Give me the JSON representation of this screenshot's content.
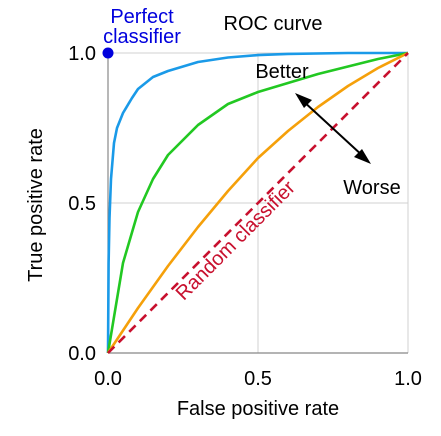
{
  "chart_data": {
    "type": "line",
    "title": "ROC curve",
    "xlabel": "False positive rate",
    "ylabel": "True positive rate",
    "xlim": [
      0,
      1
    ],
    "ylim": [
      0,
      1
    ],
    "grid": true,
    "xticks": [
      {
        "value": 0,
        "label": "0.0"
      },
      {
        "value": 0.5,
        "label": "0.5"
      },
      {
        "value": 1,
        "label": "1.0"
      }
    ],
    "yticks": [
      {
        "value": 0,
        "label": "0.0"
      },
      {
        "value": 0.5,
        "label": "0.5"
      },
      {
        "value": 1,
        "label": "1.0"
      }
    ],
    "series": [
      {
        "color": "#1a9ae8",
        "style": "solid",
        "x": [
          0,
          0.002,
          0.005,
          0.01,
          0.02,
          0.03,
          0.05,
          0.08,
          0.1,
          0.15,
          0.2,
          0.3,
          0.4,
          0.5,
          0.6,
          0.8,
          1.0
        ],
        "y": [
          0,
          0.3,
          0.45,
          0.58,
          0.7,
          0.75,
          0.8,
          0.85,
          0.88,
          0.92,
          0.94,
          0.97,
          0.985,
          0.993,
          0.997,
          1.0,
          1.0
        ]
      },
      {
        "color": "#22c822",
        "style": "solid",
        "x": [
          0,
          0.05,
          0.1,
          0.15,
          0.2,
          0.3,
          0.4,
          0.5,
          0.6,
          0.7,
          0.8,
          0.9,
          1.0
        ],
        "y": [
          0,
          0.3,
          0.47,
          0.58,
          0.66,
          0.76,
          0.83,
          0.87,
          0.9,
          0.93,
          0.955,
          0.98,
          1.0
        ]
      },
      {
        "color": "#f5a00a",
        "style": "solid",
        "x": [
          0,
          0.1,
          0.2,
          0.3,
          0.4,
          0.5,
          0.6,
          0.7,
          0.8,
          0.9,
          1.0
        ],
        "y": [
          0,
          0.15,
          0.29,
          0.42,
          0.54,
          0.65,
          0.74,
          0.82,
          0.89,
          0.95,
          1.0
        ]
      },
      {
        "name": "Random classifier",
        "color": "#c8102e",
        "style": "dashed",
        "x": [
          0,
          1
        ],
        "y": [
          0,
          1
        ]
      }
    ],
    "points": [
      {
        "name": "Perfect classifier",
        "x": 0,
        "y": 1,
        "color": "#0000dd"
      }
    ],
    "annotations": {
      "perfect_line1": "Perfect",
      "perfect_line2": "classifier",
      "random": "Random classifier",
      "better": "Better",
      "worse": "Worse"
    }
  }
}
